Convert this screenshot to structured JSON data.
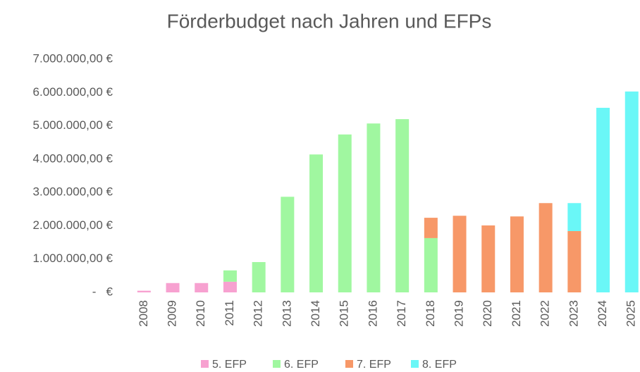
{
  "chart_data": {
    "type": "stacked_bar",
    "title": "Förderbudget nach Jahren und EFPs",
    "categories": [
      "2008",
      "2009",
      "2010",
      "2011",
      "2012",
      "2013",
      "2014",
      "2015",
      "2016",
      "2017",
      "2018",
      "2019",
      "2020",
      "2021",
      "2022",
      "2023",
      "2024",
      "2025"
    ],
    "series": [
      {
        "name": "5. EFP",
        "color": "#f7a1d0",
        "values": [
          50000,
          280000,
          280000,
          320000,
          null,
          null,
          null,
          null,
          null,
          null,
          null,
          null,
          null,
          null,
          null,
          null,
          null,
          null
        ]
      },
      {
        "name": "6. EFP",
        "color": "#a0f7a0",
        "values": [
          null,
          null,
          null,
          340000,
          910000,
          2870000,
          4140000,
          4740000,
          5070000,
          5200000,
          1630000,
          null,
          null,
          null,
          null,
          null,
          null,
          null
        ]
      },
      {
        "name": "7. EFP",
        "color": "#f79868",
        "values": [
          null,
          null,
          null,
          null,
          null,
          null,
          null,
          null,
          null,
          null,
          610000,
          2300000,
          2010000,
          2280000,
          2680000,
          1840000,
          null,
          null
        ]
      },
      {
        "name": "8. EFP",
        "color": "#6af7f7",
        "values": [
          null,
          null,
          null,
          null,
          null,
          null,
          null,
          null,
          null,
          null,
          null,
          null,
          null,
          null,
          null,
          840000,
          5540000,
          6030000
        ]
      }
    ],
    "ylim": [
      0,
      7000000
    ],
    "yticks": [
      {
        "value": 0,
        "label": "-   €"
      },
      {
        "value": 1000000,
        "label": "1.000.000,00 €"
      },
      {
        "value": 2000000,
        "label": "2.000.000,00 €"
      },
      {
        "value": 3000000,
        "label": "3.000.000,00 €"
      },
      {
        "value": 4000000,
        "label": "4.000.000,00 €"
      },
      {
        "value": 5000000,
        "label": "5.000.000,00 €"
      },
      {
        "value": 6000000,
        "label": "6.000.000,00 €"
      },
      {
        "value": 7000000,
        "label": "7.000.000,00 €"
      }
    ],
    "grid": false,
    "legend": "bottom"
  }
}
